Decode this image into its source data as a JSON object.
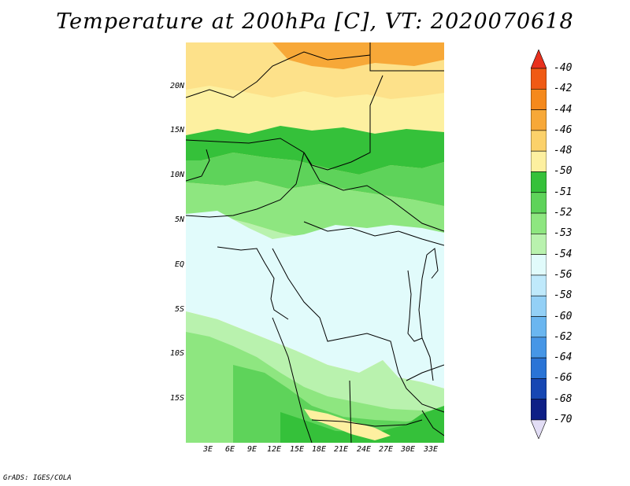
{
  "title": "Temperature at 200hPa [C], VT: 2020070618",
  "credit": "GrADS: IGES/COLA",
  "lat_labels": [
    "20N",
    "15N",
    "10N",
    "5N",
    "EQ",
    "5S",
    "10S",
    "15S"
  ],
  "lon_labels": [
    "3E",
    "6E",
    "9E",
    "12E",
    "15E",
    "18E",
    "21E",
    "24E",
    "27E",
    "30E",
    "33E"
  ],
  "colorbar": {
    "labels": [
      "-40",
      "-42",
      "-44",
      "-46",
      "-48",
      "-50",
      "-51",
      "-52",
      "-53",
      "-54",
      "-56",
      "-58",
      "-60",
      "-62",
      "-64",
      "-66",
      "-68",
      "-70"
    ],
    "colors": [
      "#e8311e",
      "#f05a14",
      "#f5891c",
      "#f7a838",
      "#fbd16a",
      "#fdf0a0",
      "#35c13a",
      "#5ed35a",
      "#8ee680",
      "#b9f2ae",
      "#e1fbfb",
      "#bfe9fb",
      "#93d0f6",
      "#6ab6f0",
      "#4696e6",
      "#2a74d6",
      "#1747b3",
      "#0e1f86",
      "#e2ddf5"
    ]
  },
  "map_colors": {
    "c48": "#fbc65a",
    "c50": "#fde18a",
    "c50b": "#fdf0a0",
    "c51": "#35c13a",
    "c52": "#5ed35a",
    "c53": "#8ee680",
    "c54": "#b9f2ae",
    "c56": "#e1fbfb",
    "c46": "#f7a838"
  }
}
